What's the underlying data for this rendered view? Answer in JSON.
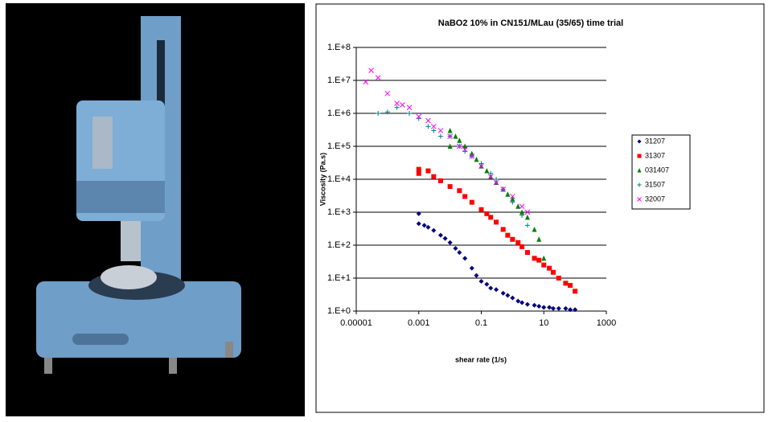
{
  "chart_data": {
    "type": "scatter",
    "title": "NaBO2 10% in CN151/MLau (35/65) time trial",
    "x_label": "shear rate (1/s)",
    "y_label": "Viscosity (Pa.s)",
    "xscale": "log",
    "yscale": "log",
    "grid": true,
    "legend": "right",
    "xlim": [
      1e-05,
      1000
    ],
    "xticks": [
      {
        "value": 1e-05,
        "label": "0.00001"
      },
      {
        "value": 0.001,
        "label": "0.001"
      },
      {
        "value": 0.1,
        "label": "0.1"
      },
      {
        "value": 10,
        "label": "10"
      },
      {
        "value": 1000,
        "label": "1000"
      }
    ],
    "ylim": [
      1,
      100000000
    ],
    "yticks": [
      {
        "value": 1,
        "label": "1.E+0"
      },
      {
        "value": 10,
        "label": "1.E+1"
      },
      {
        "value": 100,
        "label": "1.E+2"
      },
      {
        "value": 1000,
        "label": "1.E+3"
      },
      {
        "value": 10000,
        "label": "1.E+4"
      },
      {
        "value": 100000,
        "label": "1.E+5"
      },
      {
        "value": 1000000,
        "label": "1.E+6"
      },
      {
        "value": 10000000,
        "label": "1.E+7"
      },
      {
        "value": 100000000,
        "label": "1.E+8"
      }
    ],
    "series": [
      {
        "name": "31207",
        "color": "#000080",
        "marker": "diamond",
        "x": [
          0.001,
          0.001,
          0.0015,
          0.002,
          0.003,
          0.005,
          0.007,
          0.01,
          0.015,
          0.02,
          0.03,
          0.05,
          0.07,
          0.1,
          0.15,
          0.2,
          0.3,
          0.5,
          0.7,
          1,
          1.5,
          2,
          3,
          5,
          7,
          10,
          15,
          20,
          30,
          50,
          70,
          100
        ],
        "values": [
          900,
          450,
          400,
          350,
          280,
          200,
          160,
          120,
          80,
          60,
          40,
          20,
          12,
          8,
          6.5,
          5,
          4.5,
          3.5,
          3,
          2.5,
          2,
          1.8,
          1.6,
          1.5,
          1.4,
          1.3,
          1.3,
          1.2,
          1.2,
          1.2,
          1.1,
          1.1
        ]
      },
      {
        "name": "31307",
        "color": "#ff0000",
        "marker": "square",
        "x": [
          0.001,
          0.001,
          0.002,
          0.003,
          0.005,
          0.01,
          0.02,
          0.03,
          0.05,
          0.1,
          0.15,
          0.2,
          0.3,
          0.5,
          0.7,
          1,
          1.5,
          2,
          3,
          5,
          7,
          10,
          15,
          20,
          30,
          50,
          70,
          100
        ],
        "values": [
          20000,
          15000,
          18000,
          12000,
          9000,
          6000,
          4500,
          3000,
          2000,
          1200,
          900,
          700,
          500,
          300,
          200,
          150,
          120,
          90,
          60,
          40,
          35,
          25,
          20,
          15,
          10,
          7,
          6,
          4
        ]
      },
      {
        "name": "031407",
        "color": "#008000",
        "marker": "triangle",
        "x": [
          0.01,
          0.01,
          0.015,
          0.02,
          0.03,
          0.05,
          0.07,
          0.1,
          0.15,
          0.2,
          0.3,
          0.5,
          0.7,
          1,
          1.5,
          2,
          3,
          5,
          7,
          10
        ],
        "values": [
          300000,
          100000,
          200000,
          150000,
          100000,
          60000,
          40000,
          25000,
          18000,
          12000,
          8000,
          5000,
          3500,
          2500,
          1500,
          1000,
          700,
          300,
          150,
          40
        ]
      },
      {
        "name": "31507",
        "color": "#008080",
        "marker": "plus",
        "x": [
          5e-05,
          0.0001,
          0.0002,
          0.0005,
          0.001,
          0.002,
          0.003,
          0.005,
          0.01,
          0.02,
          0.03,
          0.05,
          0.1,
          0.2,
          0.3,
          0.5,
          1,
          2,
          3
        ],
        "values": [
          1000000,
          1100000,
          1500000,
          1000000,
          700000,
          400000,
          300000,
          200000,
          200000,
          100000,
          70000,
          50000,
          30000,
          15000,
          10000,
          5000,
          2000,
          800,
          400
        ]
      },
      {
        "name": "32007",
        "color": "#ff00ff",
        "marker": "cross",
        "x": [
          2e-05,
          3e-05,
          5e-05,
          0.0001,
          0.0002,
          0.0003,
          0.0005,
          0.001,
          0.002,
          0.003,
          0.005,
          0.01,
          0.02,
          0.03,
          0.05,
          0.1,
          0.2,
          0.3,
          0.5,
          1,
          2,
          3
        ],
        "values": [
          9000000,
          20000000,
          12000000,
          4000000,
          2000000,
          1800000,
          1500000,
          800000,
          600000,
          400000,
          300000,
          200000,
          100000,
          80000,
          50000,
          25000,
          12000,
          8000,
          5000,
          3000,
          1500,
          1000
        ]
      }
    ]
  }
}
